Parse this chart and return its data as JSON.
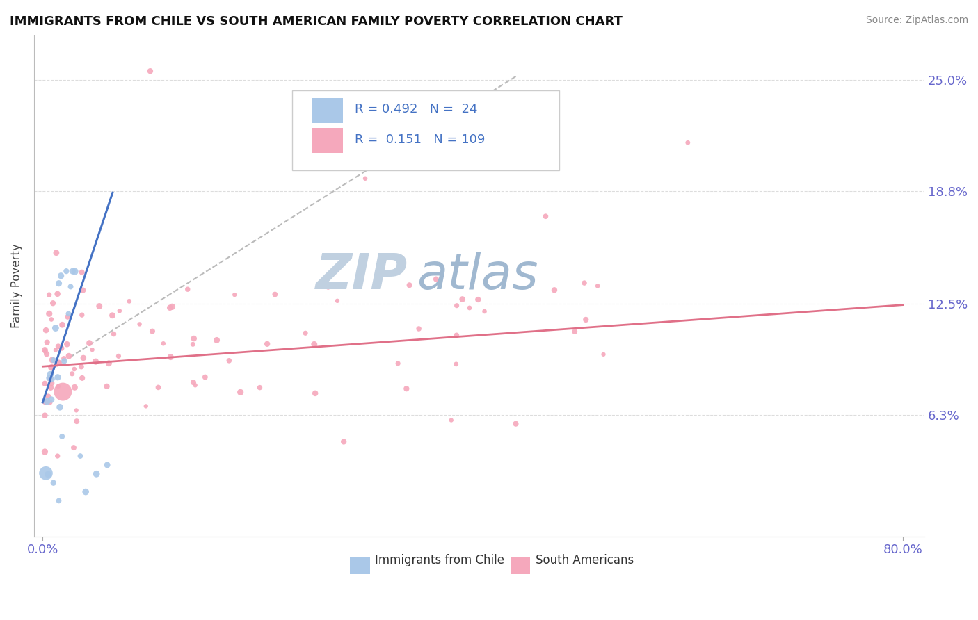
{
  "title": "IMMIGRANTS FROM CHILE VS SOUTH AMERICAN FAMILY POVERTY CORRELATION CHART",
  "source_text": "Source: ZipAtlas.com",
  "ylabel": "Family Poverty",
  "xlim": [
    0.0,
    0.8
  ],
  "ylim": [
    0.0,
    0.275
  ],
  "xtick_values": [
    0.0,
    0.8
  ],
  "xticklabels": [
    "0.0%",
    "80.0%"
  ],
  "ytick_labels": [
    "6.3%",
    "12.5%",
    "18.8%",
    "25.0%"
  ],
  "ytick_values": [
    0.063,
    0.125,
    0.188,
    0.25
  ],
  "chile_R": 0.492,
  "chile_N": 24,
  "sa_R": 0.151,
  "sa_N": 109,
  "chile_color": "#aac8e8",
  "sa_color": "#f5a8bc",
  "chile_line_color": "#4472c4",
  "sa_line_color": "#e07088",
  "dashed_line_color": "#bbbbbb",
  "background_color": "#ffffff",
  "grid_color": "#dddddd",
  "watermark_zip_color": "#c0d0e0",
  "watermark_atlas_color": "#a0b8d0",
  "tick_color": "#6666cc",
  "title_color": "#111111",
  "source_color": "#888888",
  "ylabel_color": "#444444",
  "legend_edge_color": "#cccccc",
  "legend_text_color": "#4472c4"
}
